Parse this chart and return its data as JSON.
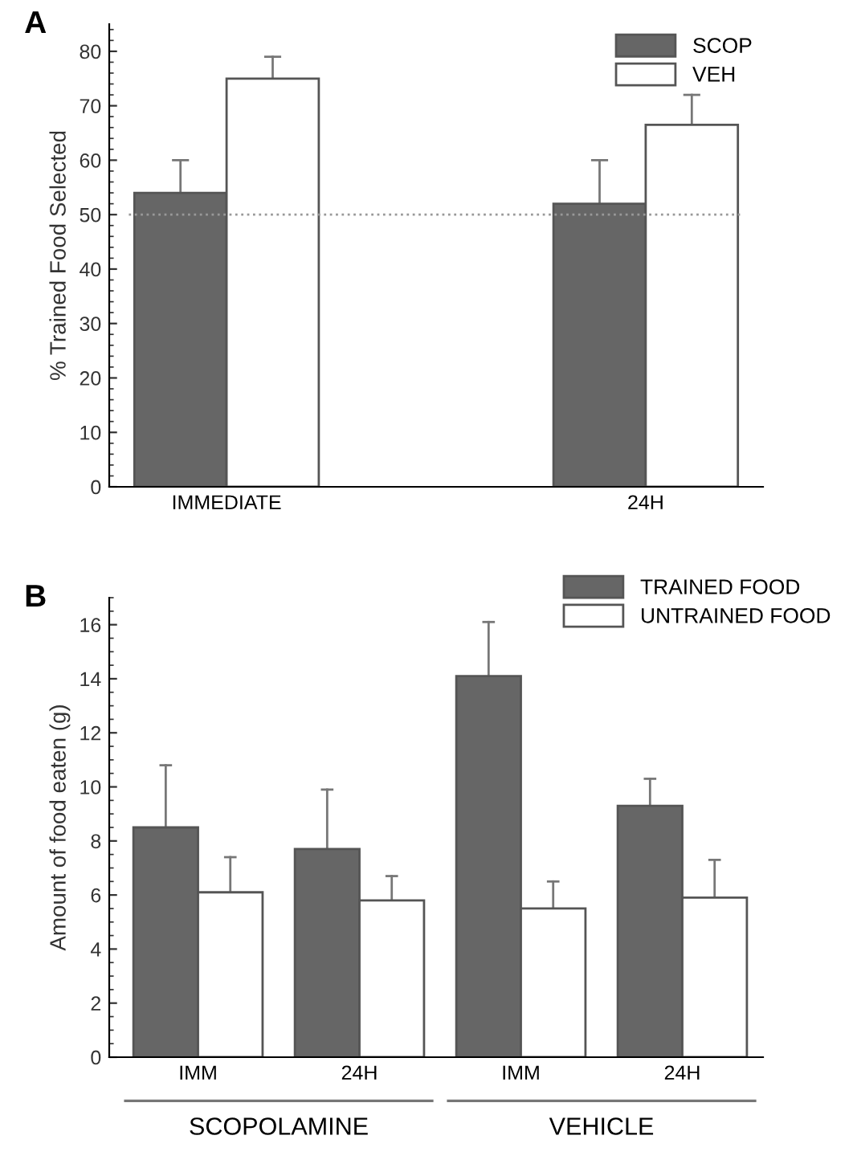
{
  "chart_data": [
    {
      "type": "bar",
      "ylabel": "% Trained Food Selected",
      "categories": [
        "IMMEDIATE",
        "24H"
      ],
      "series": [
        {
          "name": "SCOP",
          "color": "#666666",
          "values": [
            54,
            52
          ],
          "errors": [
            [
              54,
              60
            ],
            [
              52,
              60
            ]
          ]
        },
        {
          "name": "VEH",
          "color": "#ffffff",
          "values": [
            75,
            66.5
          ],
          "errors": [
            [
              75,
              79
            ],
            [
              66.5,
              72
            ]
          ]
        }
      ],
      "ylim": [
        0,
        85
      ],
      "yticks": [
        0,
        10,
        20,
        30,
        40,
        50,
        60,
        70,
        80
      ],
      "ref_lines": [
        {
          "axis": "y",
          "value": 50,
          "line_style": "dotted",
          "color": "#999999"
        }
      ],
      "legend": "top right",
      "grid": false,
      "annotations": [
        "A"
      ]
    },
    {
      "type": "bar",
      "ylabel": "Amount of food eaten (g)",
      "categories": [
        "IMM",
        "24H",
        "IMM",
        "24H"
      ],
      "series": [
        {
          "name": "TRAINED FOOD",
          "color": "#666666",
          "values": [
            8.5,
            7.7,
            14.1,
            9.3
          ],
          "errors": [
            [
              8.5,
              10.8
            ],
            [
              7.7,
              9.9
            ],
            [
              14.1,
              16.1
            ],
            [
              9.3,
              10.3
            ]
          ]
        },
        {
          "name": "UNTRAINED FOOD",
          "color": "#ffffff",
          "values": [
            6.1,
            5.8,
            5.5,
            5.9
          ],
          "errors": [
            [
              6.1,
              7.4
            ],
            [
              5.8,
              6.7
            ],
            [
              5.5,
              6.5
            ],
            [
              5.9,
              7.3
            ]
          ]
        }
      ],
      "ylim": [
        0,
        17
      ],
      "yticks": [
        0,
        2,
        4,
        6,
        8,
        10,
        12,
        14,
        16
      ],
      "legend": "top right",
      "grid": false,
      "annotations": [
        "B",
        "SCOPOLAMINE",
        "VEHICLE"
      ]
    }
  ]
}
